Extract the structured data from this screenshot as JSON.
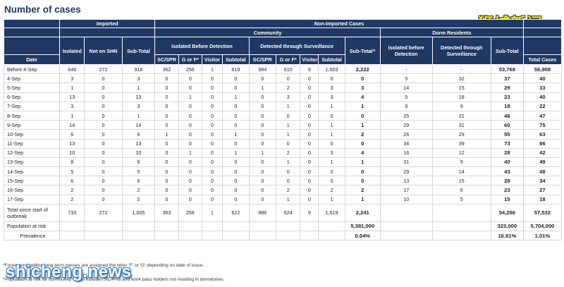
{
  "title": "Number of cases",
  "watermark_cn": "狮城新闻",
  "watermark_site": "shicheng.news",
  "headers": {
    "imported": "Imported",
    "non_imported": "Non-Imported Cases",
    "community": "Community",
    "dorm": "Dorm Residents",
    "isolated_before": "Isolated Before Detection",
    "surveillance": "Detected through Surveillance",
    "isolated": "Isolated",
    "not_on_shn": "Not on SHN",
    "subtotal": "Sub-Total",
    "sc_spr": "SC/SPR",
    "g_or_f": "G or F*",
    "visitor": "Visitor",
    "subtotal_small": "Subtotal",
    "subtotal_hat": "Sub-Total^",
    "dorm_isolated": "Isolated before Detection",
    "dorm_surveillance": "Detected through Surveillance",
    "dorm_subtotal": "Sub-Total",
    "date": "Date",
    "total_cases": "Total Cases"
  },
  "rows": [
    [
      "Before 4-Sep",
      "646",
      "272",
      "918",
      "362",
      "256",
      "1",
      "619",
      "984",
      "610",
      "9",
      "1,603",
      "2,222",
      "-",
      "-",
      "53,768",
      "56,908"
    ],
    [
      "4-Sep",
      "3",
      "0",
      "3",
      "0",
      "0",
      "0",
      "0",
      "0",
      "0",
      "0",
      "0",
      "0",
      "5",
      "32",
      "37",
      "40"
    ],
    [
      "5-Sep",
      "1",
      "0",
      "1",
      "0",
      "0",
      "0",
      "0",
      "1",
      "2",
      "0",
      "3",
      "3",
      "14",
      "15",
      "29",
      "33"
    ],
    [
      "6-Sep",
      "13",
      "0",
      "13",
      "0",
      "1",
      "0",
      "1",
      "0",
      "3",
      "0",
      "3",
      "4",
      "5",
      "18",
      "23",
      "40"
    ],
    [
      "7-Sep",
      "3",
      "0",
      "3",
      "0",
      "0",
      "0",
      "0",
      "0",
      "1",
      "0",
      "1",
      "1",
      "9",
      "9",
      "18",
      "22"
    ],
    [
      "8-Sep",
      "1",
      "0",
      "1",
      "0",
      "0",
      "0",
      "0",
      "0",
      "0",
      "0",
      "0",
      "0",
      "25",
      "21",
      "46",
      "47"
    ],
    [
      "9-Sep",
      "14",
      "0",
      "14",
      "0",
      "0",
      "0",
      "0",
      "0",
      "1",
      "0",
      "1",
      "1",
      "29",
      "31",
      "60",
      "75"
    ],
    [
      "10-Sep",
      "6",
      "0",
      "6",
      "1",
      "0",
      "0",
      "1",
      "0",
      "1",
      "0",
      "1",
      "2",
      "26",
      "29",
      "55",
      "63"
    ],
    [
      "11-Sep",
      "13",
      "0",
      "13",
      "0",
      "0",
      "0",
      "0",
      "0",
      "0",
      "0",
      "0",
      "0",
      "34",
      "39",
      "73",
      "86"
    ],
    [
      "12-Sep",
      "10",
      "0",
      "10",
      "0",
      "1",
      "0",
      "1",
      "1",
      "2",
      "0",
      "3",
      "4",
      "16",
      "12",
      "28",
      "42"
    ],
    [
      "13-Sep",
      "8",
      "0",
      "8",
      "0",
      "0",
      "0",
      "0",
      "0",
      "1",
      "0",
      "1",
      "1",
      "31",
      "9",
      "40",
      "49"
    ],
    [
      "14-Sep",
      "5",
      "0",
      "5",
      "0",
      "0",
      "0",
      "0",
      "0",
      "0",
      "0",
      "0",
      "0",
      "29",
      "14",
      "43",
      "48"
    ],
    [
      "15-Sep",
      "6",
      "0",
      "6",
      "0",
      "0",
      "0",
      "0",
      "0",
      "0",
      "0",
      "0",
      "0",
      "13",
      "15",
      "28",
      "34"
    ],
    [
      "16-Sep",
      "2",
      "0",
      "2",
      "0",
      "0",
      "0",
      "0",
      "0",
      "2",
      "0",
      "2",
      "2",
      "17",
      "6",
      "23",
      "27"
    ],
    [
      "17-Sep",
      "2",
      "0",
      "2",
      "0",
      "0",
      "0",
      "0",
      "0",
      "1",
      "0",
      "1",
      "1",
      "10",
      "5",
      "15",
      "18"
    ]
  ],
  "total": {
    "label": "Total since start of outbreak",
    "values": [
      "733",
      "272",
      "1,005",
      "363",
      "258",
      "1",
      "622",
      "986",
      "624",
      "9",
      "1,619",
      "2,241",
      "",
      "",
      "54,286",
      "57,532"
    ]
  },
  "population": {
    "label": "Population at risk",
    "community": "5,381,000",
    "dorm": "323,000",
    "total": "5,704,000"
  },
  "prevalence": {
    "label": "Prevalence",
    "community": "0.04%",
    "dorm": "16.81%",
    "total": "1.01%"
  },
  "footnotes": [
    "*Foreigners holding long-term passes are assigned the letter 'F' or 'G' depending on date of issue.",
    "^Population at risk for community cases includes SC/PRs and work pass holders not residing in dormitories."
  ]
}
